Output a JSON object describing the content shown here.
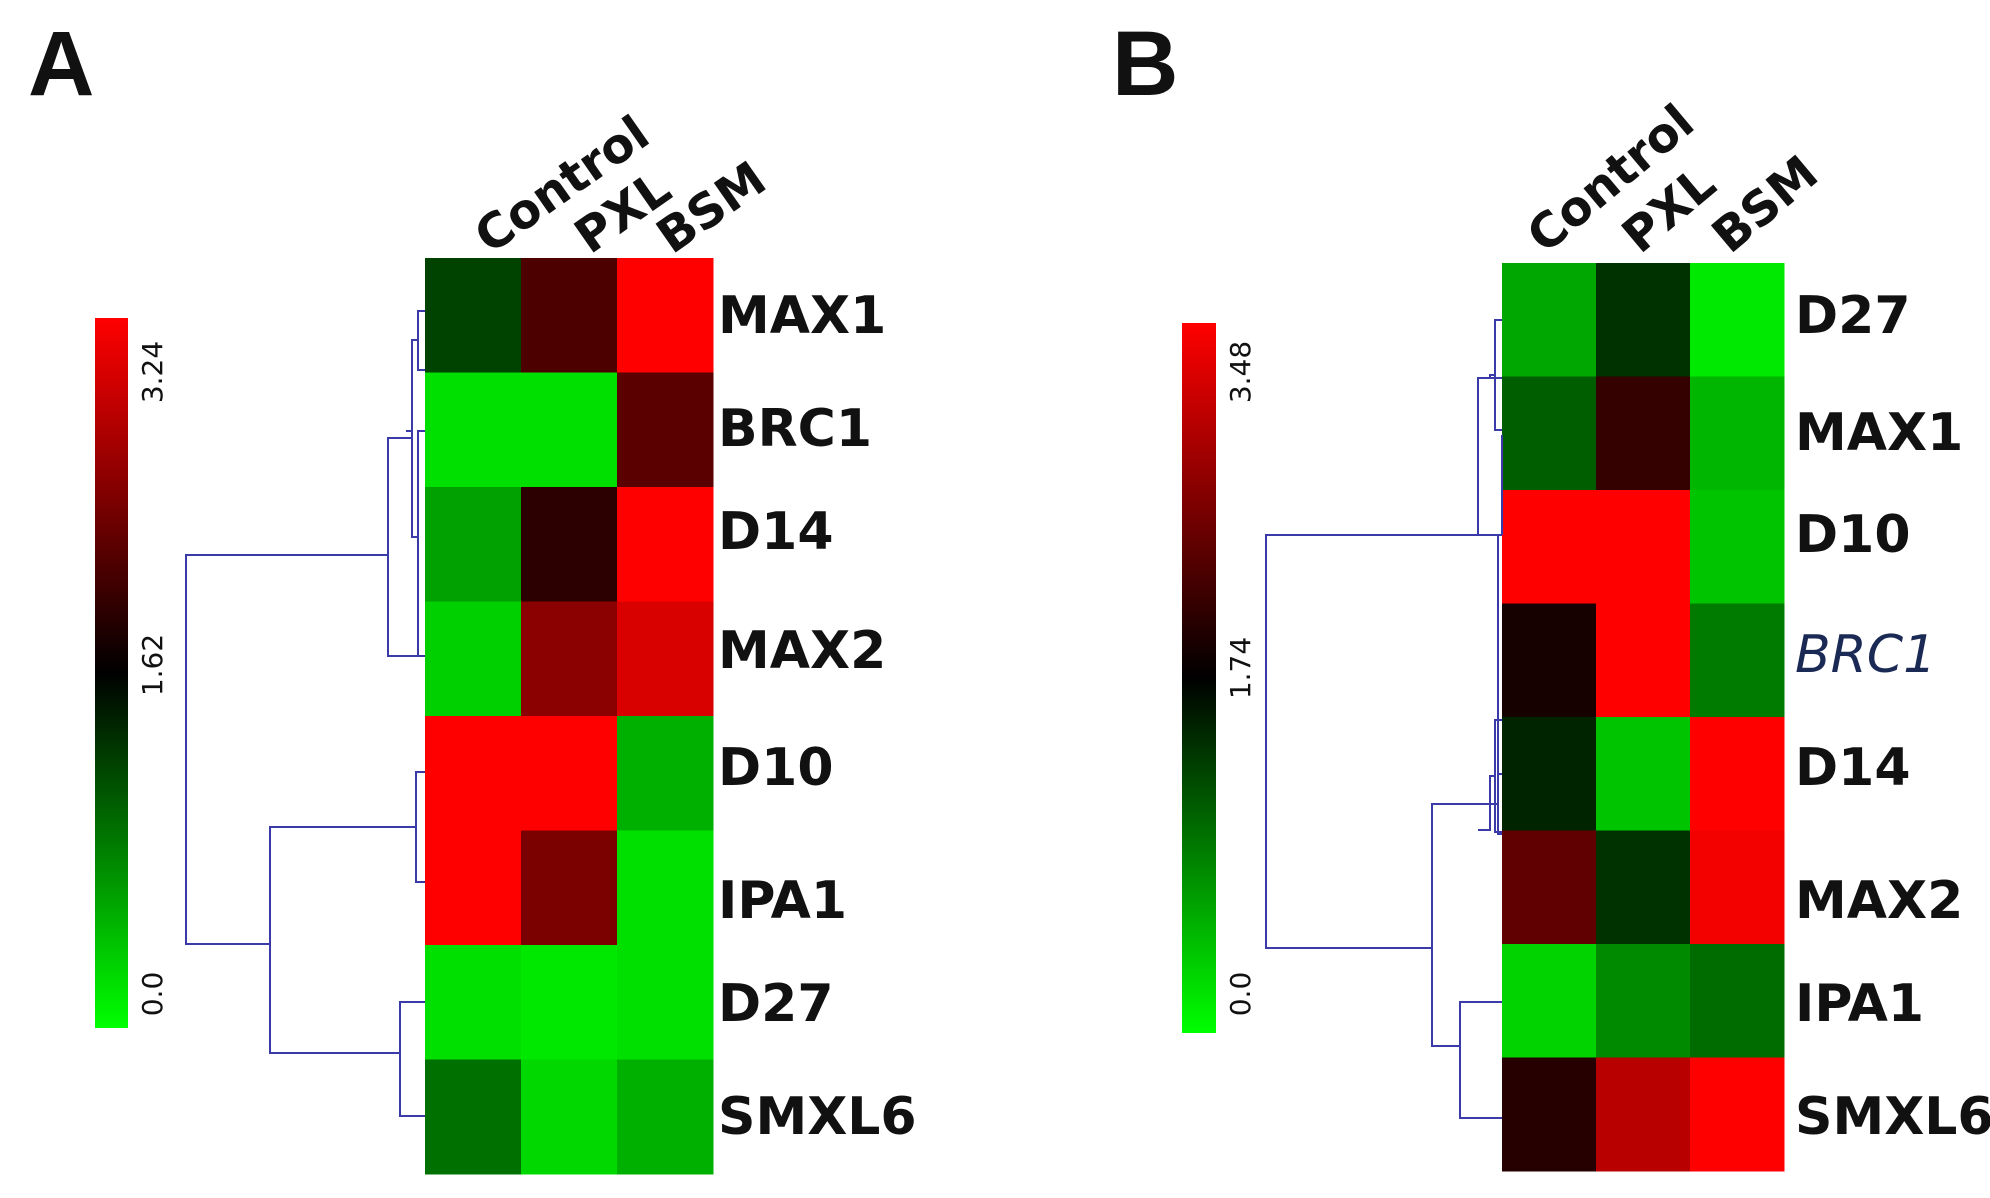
{
  "chart_data": [
    {
      "type": "heatmap",
      "panel_label": "A",
      "columns": [
        "Control",
        "PXL",
        "BSM"
      ],
      "rows": [
        "MAX1",
        "BRC1",
        "D14",
        "MAX2",
        "D10",
        "IPA1",
        "D27",
        "SMXL6"
      ],
      "italic_rows": [],
      "color_scale": {
        "min": 0.0,
        "mid": 1.62,
        "max": 3.24,
        "ticks": [
          "3.24",
          "1.62",
          "0.0"
        ],
        "colors": [
          "#00ff00",
          "#000000",
          "#ff0000"
        ]
      },
      "values": [
        [
          1.2,
          2.1,
          3.24
        ],
        [
          0.2,
          0.2,
          2.2
        ],
        [
          0.6,
          1.9,
          3.24
        ],
        [
          0.3,
          2.5,
          3.0
        ],
        [
          3.24,
          3.24,
          0.5
        ],
        [
          3.24,
          2.4,
          0.2
        ],
        [
          0.2,
          0.15,
          0.2
        ],
        [
          0.9,
          0.25,
          0.5
        ]
      ],
      "dendrogram": "row-clustering"
    },
    {
      "type": "heatmap",
      "panel_label": "B",
      "columns": [
        "Control",
        "PXL",
        "BSM"
      ],
      "rows": [
        "D27",
        "MAX1",
        "D10",
        "BRC1",
        "D14",
        "MAX2",
        "IPA1",
        "SMXL6"
      ],
      "italic_rows": [
        "BRC1"
      ],
      "color_scale": {
        "min": 0.0,
        "mid": 1.74,
        "max": 3.48,
        "ticks": [
          "3.48",
          "1.74",
          "0.0"
        ],
        "colors": [
          "#00ff00",
          "#000000",
          "#ff0000"
        ]
      },
      "values": [
        [
          0.6,
          1.4,
          0.15
        ],
        [
          1.1,
          2.1,
          0.5
        ],
        [
          3.48,
          3.48,
          0.4
        ],
        [
          1.9,
          3.48,
          0.9
        ],
        [
          1.5,
          0.4,
          3.48
        ],
        [
          2.4,
          1.4,
          3.4
        ],
        [
          0.3,
          0.8,
          1.0
        ],
        [
          2.0,
          3.0,
          3.48
        ]
      ],
      "dendrogram": "row-clustering"
    }
  ]
}
